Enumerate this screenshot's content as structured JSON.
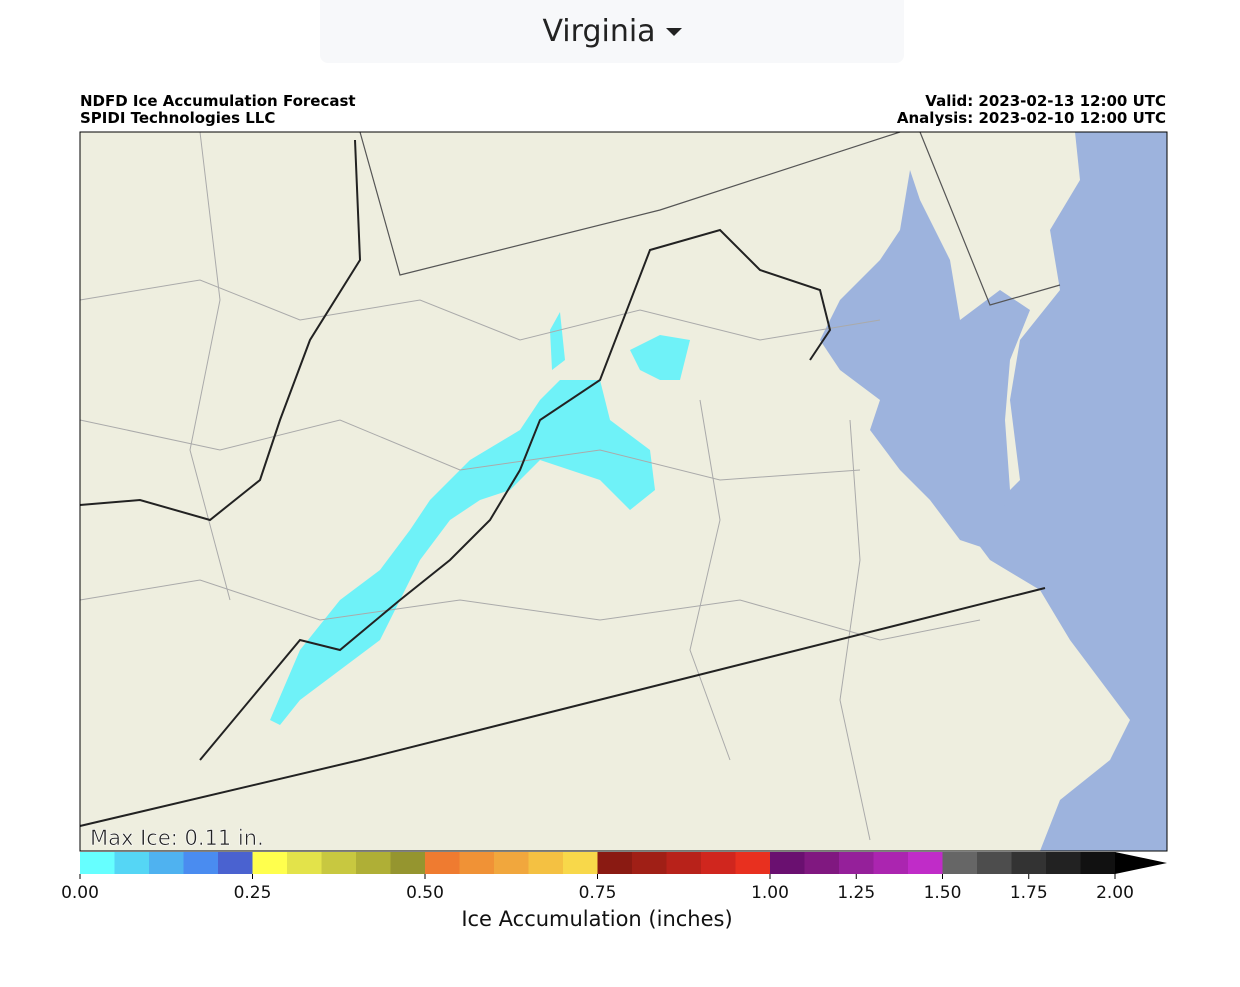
{
  "dropdown": {
    "label": "Virginia"
  },
  "map": {
    "title": "NDFD Ice Accumulation Forecast",
    "subtitle": "SPIDI Technologies LLC",
    "valid": "Valid: 2023-02-13 12:00 UTC",
    "analysis": "Analysis: 2023-02-10 12:00 UTC",
    "max_label": "Max Ice: 0.11 in."
  },
  "colorbar": {
    "label": "Ice Accumulation (inches)",
    "boundaries": [
      0,
      0.05,
      0.1,
      0.15,
      0.2,
      0.25,
      0.3,
      0.35,
      0.4,
      0.45,
      0.5,
      0.55,
      0.6,
      0.65,
      0.7,
      0.75,
      0.8,
      0.85,
      0.9,
      0.95,
      1,
      1.1,
      1.2,
      1.3,
      1.4,
      1.5,
      1.6,
      1.7,
      1.8,
      1.9,
      2
    ],
    "colors": [
      "#66ffff",
      "#55d6f5",
      "#4fb2f0",
      "#4a8cf0",
      "#4a62d0",
      "#ffff4d",
      "#e3e34a",
      "#c8c840",
      "#afaf36",
      "#95952f",
      "#ef7b30",
      "#f09236",
      "#f1a73d",
      "#f4c142",
      "#f8d84a",
      "#8a1a12",
      "#a01f16",
      "#b8221a",
      "#d0261e",
      "#e8301f",
      "#6a1070",
      "#801880",
      "#95209a",
      "#ab25b0",
      "#c02cc8",
      "#666666",
      "#4d4d4d",
      "#333333",
      "#222222",
      "#111111"
    ],
    "extend_color": "#000000",
    "xticks": [
      {
        "value": 0,
        "label": "0.00"
      },
      {
        "value": 0.25,
        "label": "0.25"
      },
      {
        "value": 0.5,
        "label": "0.50"
      },
      {
        "value": 0.75,
        "label": "0.75"
      },
      {
        "value": 1,
        "label": "1.00"
      },
      {
        "value": 1.25,
        "label": "1.25"
      },
      {
        "value": 1.5,
        "label": "1.50"
      },
      {
        "value": 1.75,
        "label": "1.75"
      },
      {
        "value": 2,
        "label": "2.00"
      }
    ]
  }
}
